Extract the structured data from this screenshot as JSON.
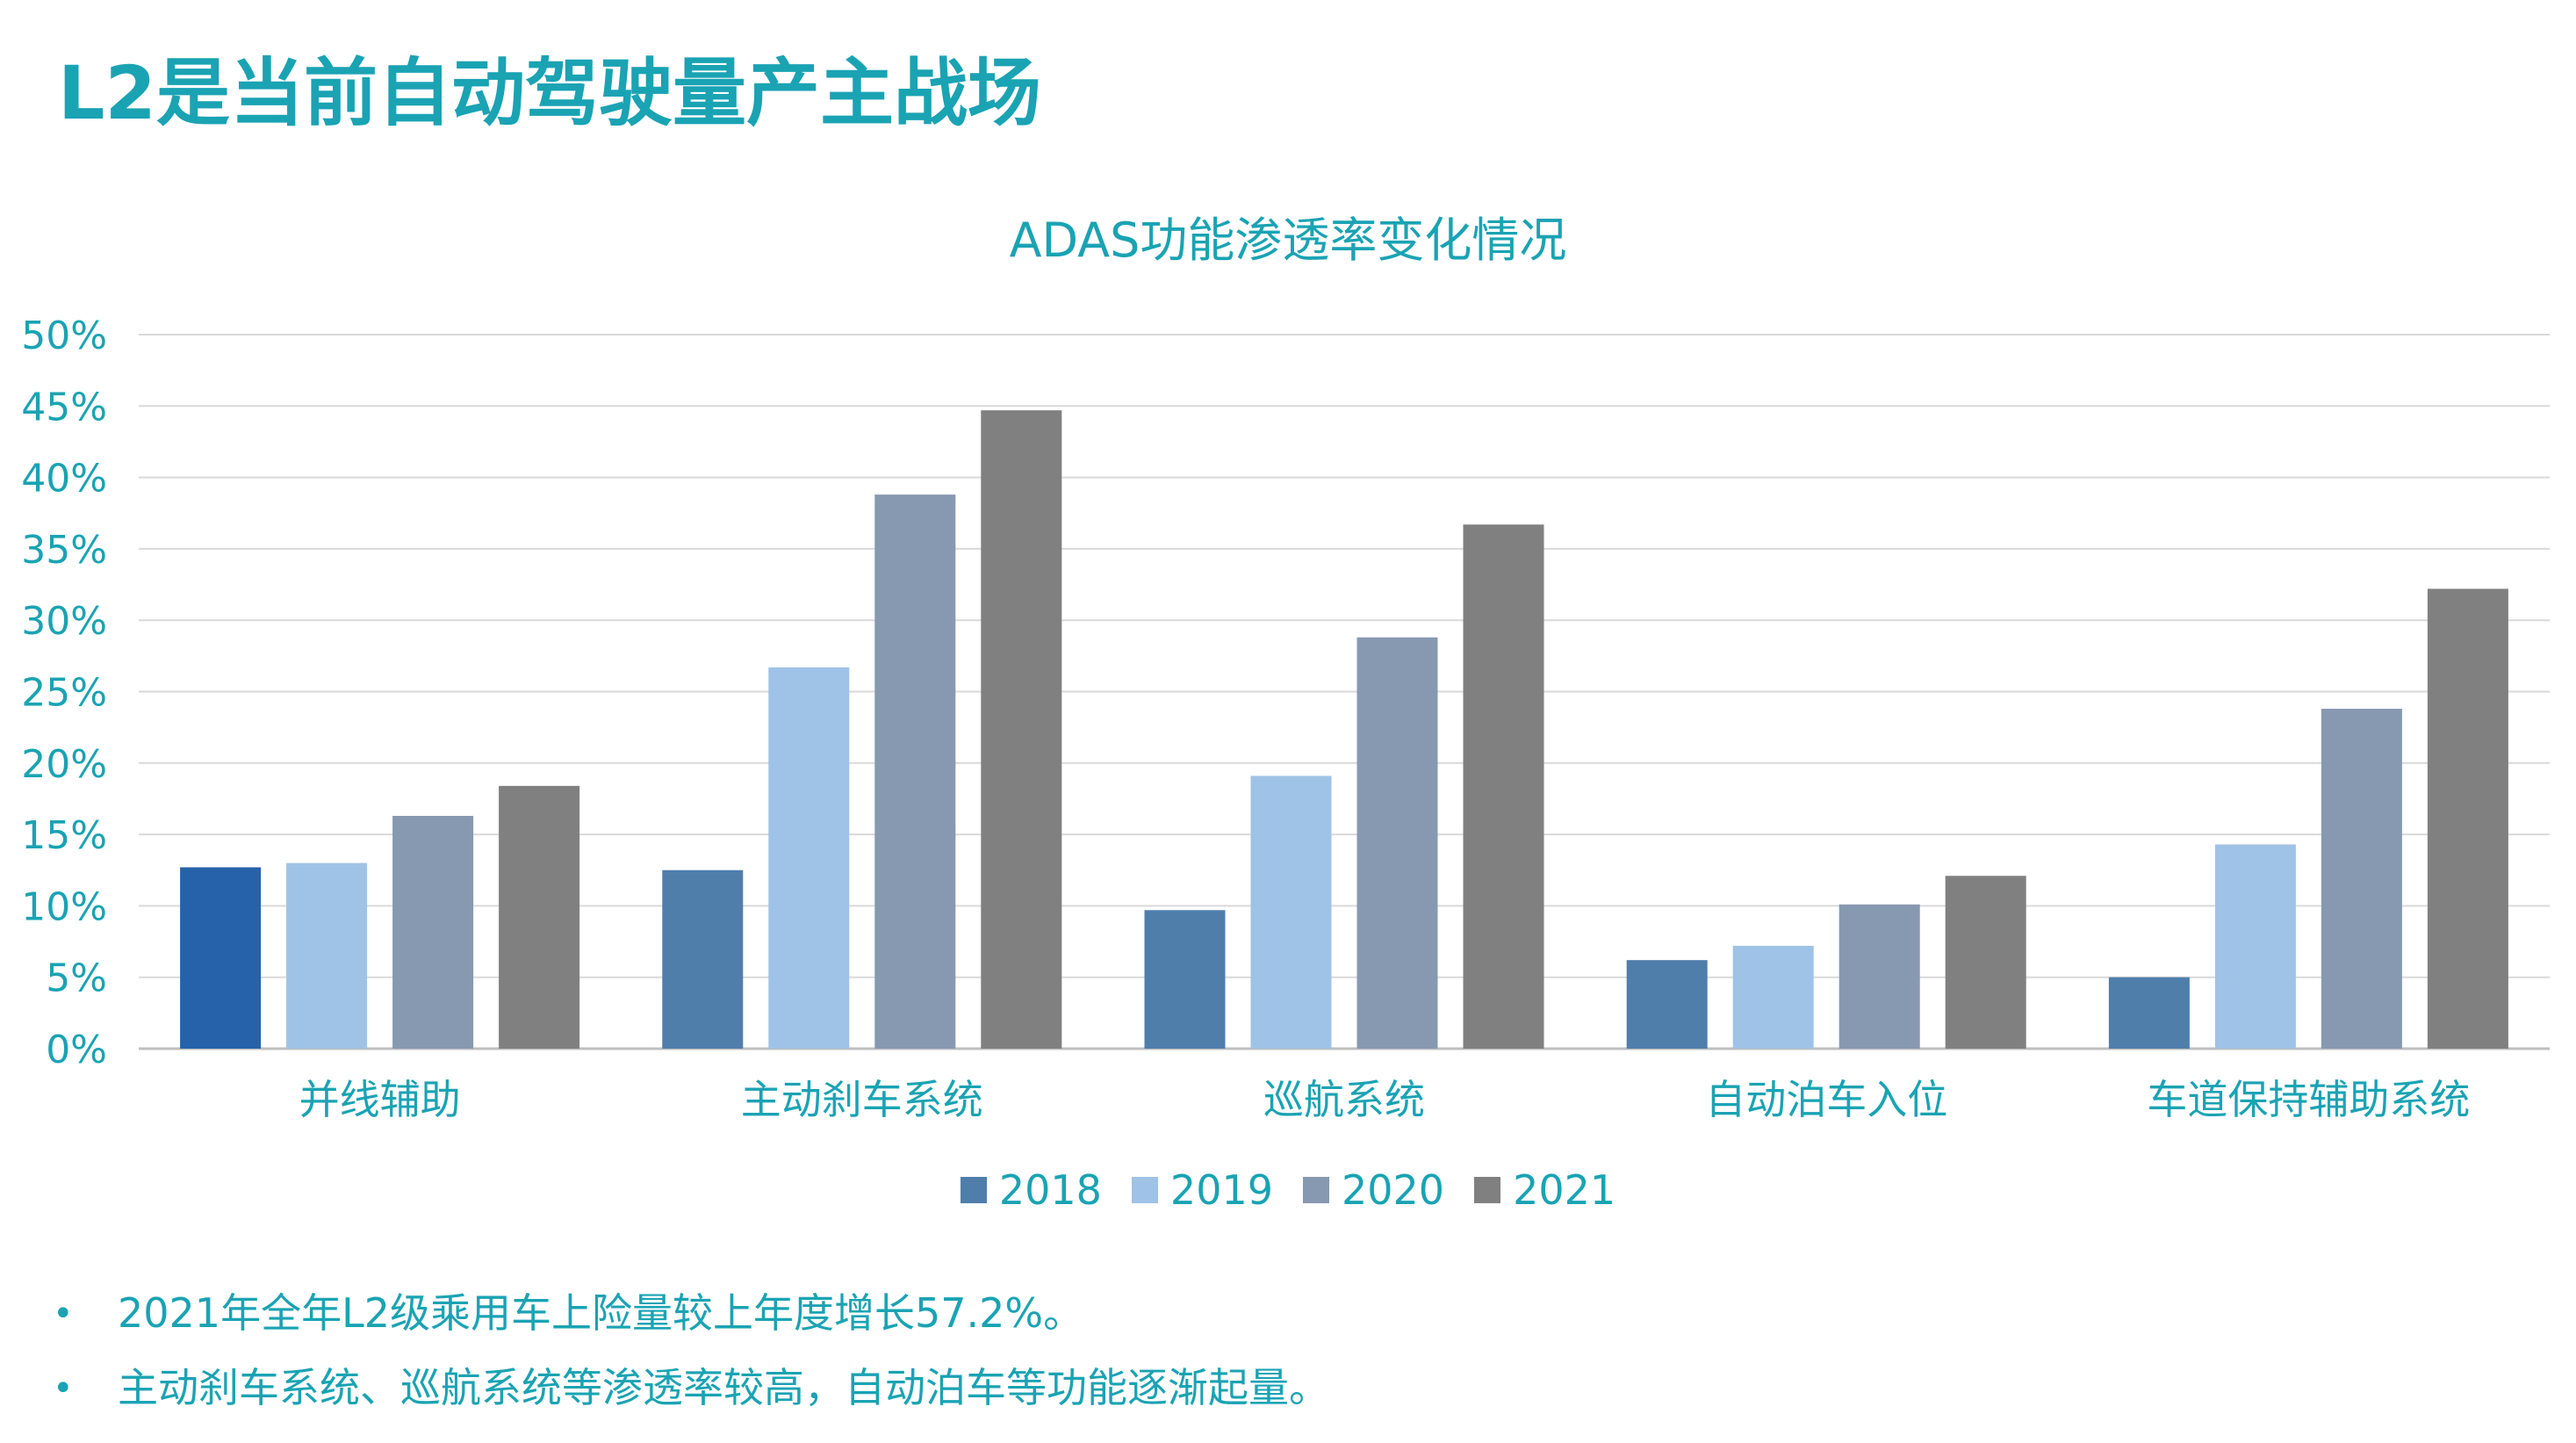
{
  "page": {
    "title": "L2是当前自动驾驶量产主战场",
    "colors": {
      "accent": "#1aa3b3"
    }
  },
  "chart_data": {
    "type": "bar",
    "title": "ADAS功能渗透率变化情况",
    "categories": [
      "并线辅助",
      "主动刹车系统",
      "巡航系统",
      "自动泊车入位",
      "车道保持辅助系统"
    ],
    "series": [
      {
        "name": "2018",
        "color": "#4f7eab",
        "values": [
          12.7,
          12.5,
          9.7,
          6.2,
          5.0
        ]
      },
      {
        "name": "2019",
        "color": "#9fc3e6",
        "values": [
          13.0,
          26.7,
          19.1,
          7.2,
          14.3
        ]
      },
      {
        "name": "2020",
        "color": "#8798b1",
        "values": [
          16.3,
          38.8,
          28.8,
          10.1,
          23.8
        ]
      },
      {
        "name": "2021",
        "color": "#808080",
        "values": [
          18.4,
          44.7,
          36.7,
          12.1,
          32.2
        ]
      }
    ],
    "first_bar_color": "#2662aa",
    "ylim": [
      0,
      50
    ],
    "yticks": [
      "0%",
      "5%",
      "10%",
      "15%",
      "20%",
      "25%",
      "30%",
      "35%",
      "40%",
      "45%",
      "50%"
    ],
    "grid": true,
    "legend_position": "bottom",
    "xlabel": "",
    "ylabel": ""
  },
  "notes": [
    {
      "bullet": "•",
      "text": "2021年全年L2级乘用车上险量较上年度增长57.2%。"
    },
    {
      "bullet": "•",
      "text": "主动刹车系统、巡航系统等渗透率较高，自动泊车等功能逐渐起量。"
    }
  ]
}
